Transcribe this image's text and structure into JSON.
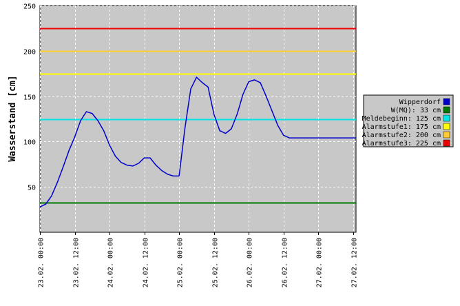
{
  "chart_data": {
    "type": "line",
    "ylabel": "Wasserstand [cm]",
    "xlabel": "",
    "ylim": [
      0,
      250
    ],
    "yticks": [
      50,
      100,
      150,
      200,
      250
    ],
    "grid": true,
    "legend_position": "right",
    "x_tick_labels": [
      "23.02. 00:00",
      "23.02. 12:00",
      "24.02. 00:00",
      "24.02. 12:00",
      "25.02. 00:00",
      "25.02. 12:00",
      "26.02. 00:00",
      "26.02. 12:00",
      "27.02. 00:00",
      "27.02. 12:00"
    ],
    "xlim": [
      "23.02. 00:00",
      "27.02. 13:00"
    ],
    "series": [
      {
        "name": "Wipperdorf",
        "color": "#0000cc",
        "x": [
          "23.02. 00:00",
          "23.02. 02:00",
          "23.02. 04:00",
          "23.02. 06:00",
          "23.02. 08:00",
          "23.02. 10:00",
          "23.02. 12:00",
          "23.02. 14:00",
          "23.02. 16:00",
          "23.02. 18:00",
          "23.02. 20:00",
          "23.02. 22:00",
          "24.02. 00:00",
          "24.02. 02:00",
          "24.02. 04:00",
          "24.02. 06:00",
          "24.02. 08:00",
          "24.02. 10:00",
          "24.02. 12:00",
          "24.02. 14:00",
          "24.02. 16:00",
          "24.02. 18:00",
          "24.02. 20:00",
          "24.02. 22:00",
          "25.02. 00:00",
          "25.02. 02:00",
          "25.02. 04:00",
          "25.02. 06:00",
          "25.02. 08:00",
          "25.02. 10:00",
          "25.02. 12:00",
          "25.02. 14:00",
          "25.02. 16:00",
          "25.02. 18:00",
          "25.02. 20:00",
          "25.02. 22:00",
          "26.02. 00:00",
          "26.02. 02:00",
          "26.02. 04:00",
          "26.02. 06:00",
          "26.02. 08:00",
          "26.02. 10:00",
          "26.02. 12:00",
          "26.02. 14:00",
          "26.02. 16:00",
          "26.02. 18:00",
          "26.02. 20:00",
          "26.02. 22:00",
          "27.02. 00:00",
          "27.02. 02:00",
          "27.02. 04:00",
          "27.02. 06:00",
          "27.02. 08:00",
          "27.02. 10:00",
          "27.02. 12:00",
          "27.02. 13:00"
        ],
        "values": [
          28,
          31,
          40,
          55,
          72,
          90,
          105,
          123,
          133,
          131,
          123,
          112,
          96,
          84,
          77,
          74,
          73,
          76,
          82,
          82,
          74,
          68,
          64,
          62,
          62,
          115,
          158,
          171,
          165,
          160,
          130,
          112,
          109,
          114,
          130,
          152,
          166,
          168,
          165,
          150,
          134,
          118,
          107,
          104,
          104,
          104,
          104,
          104,
          104,
          104,
          104,
          104,
          104,
          104,
          104,
          104
        ]
      },
      {
        "name": "W(MQ):  33 cm",
        "color": "#007700",
        "threshold": 33
      },
      {
        "name": "Meldebeginn: 125 cm",
        "color": "#00e5e5",
        "threshold": 125
      },
      {
        "name": "Alarmstufe1: 175 cm",
        "color": "#ffff00",
        "threshold": 175
      },
      {
        "name": "Alarmstufe2: 200 cm",
        "color": "#ffcc33",
        "threshold": 200
      },
      {
        "name": "Alarmstufe3: 225 cm",
        "color": "#ee0000",
        "threshold": 225
      }
    ]
  }
}
